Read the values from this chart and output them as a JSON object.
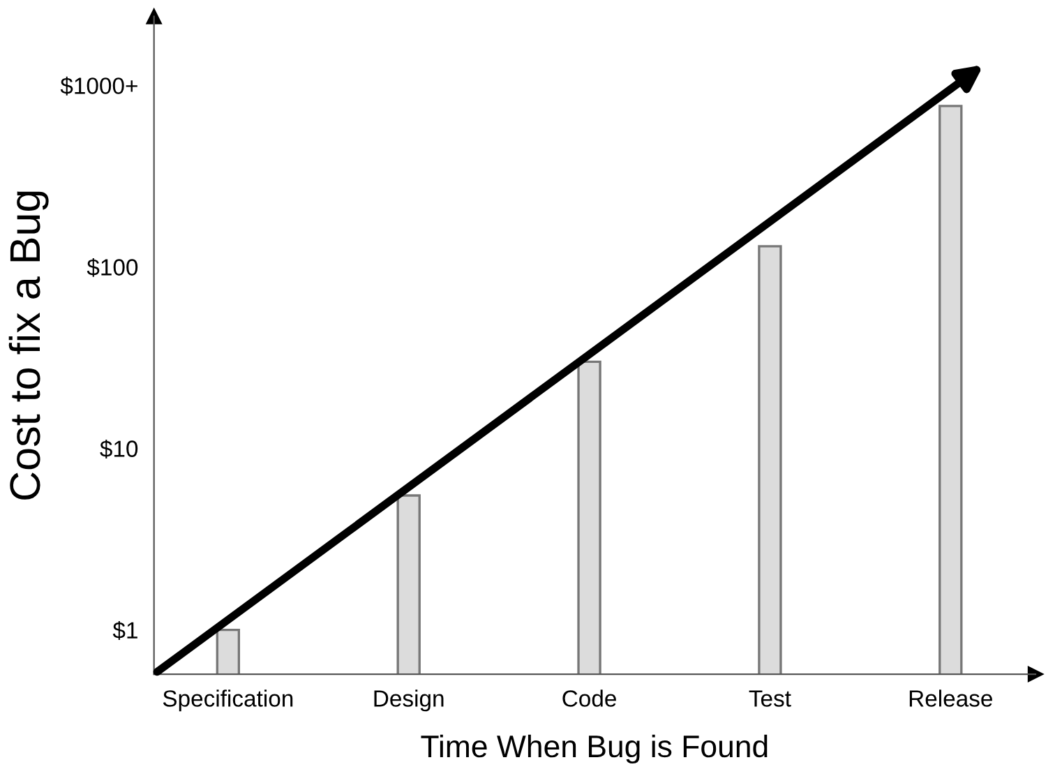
{
  "chart_data": {
    "type": "bar",
    "xlabel": "Time When Bug is Found",
    "ylabel": "Cost to fix a Bug",
    "categories": [
      "Specification",
      "Design",
      "Code",
      "Test",
      "Release"
    ],
    "values": [
      1,
      5.5,
      30,
      130,
      770
    ],
    "color": "#dcdcdc",
    "log": true,
    "ylim": [
      0.57,
      2400
    ],
    "yticks": [
      {
        "value": 1,
        "label": "$1"
      },
      {
        "value": 10,
        "label": "$10"
      },
      {
        "value": 100,
        "label": "$100"
      },
      {
        "value": 1000,
        "label": "$1000+"
      }
    ]
  }
}
